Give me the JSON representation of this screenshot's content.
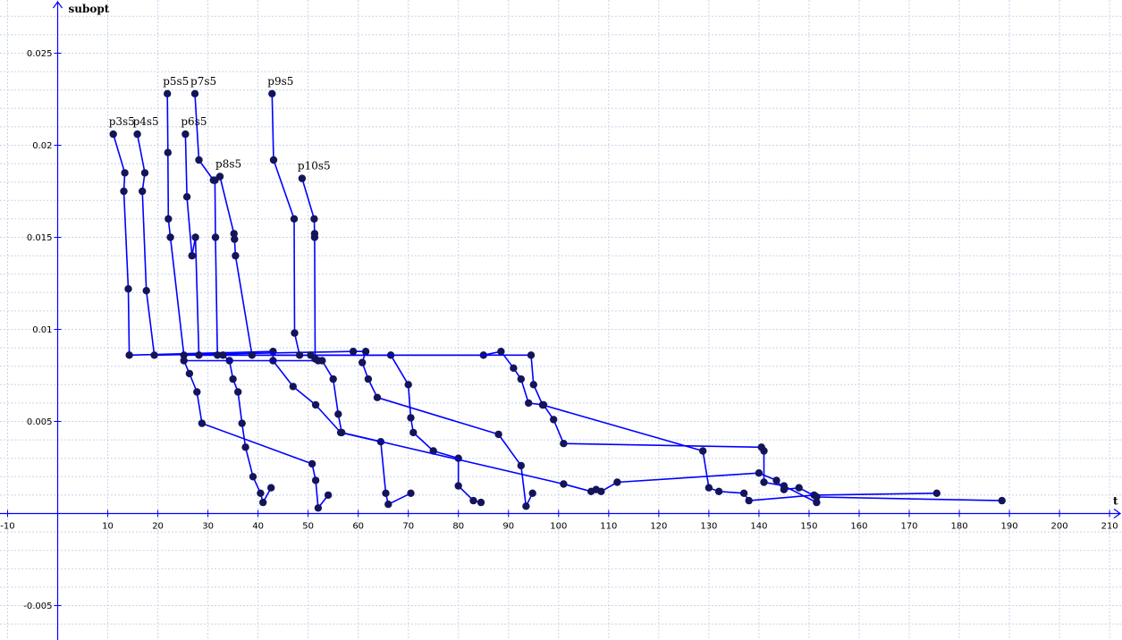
{
  "chart_data": {
    "type": "line",
    "title": "",
    "xlabel": "t",
    "ylabel": "subopt",
    "xlim": [
      -10,
      212
    ],
    "ylim": [
      -0.0068,
      0.0277
    ],
    "grid": true,
    "x_ticks": [
      -10,
      10,
      20,
      30,
      40,
      50,
      60,
      70,
      80,
      90,
      100,
      110,
      120,
      130,
      140,
      150,
      160,
      170,
      180,
      190,
      200,
      210
    ],
    "x_tick_labels": [
      "-10",
      "10",
      "20",
      "30",
      "40",
      "50",
      "60",
      "70",
      "80",
      "90",
      "100",
      "110",
      "120",
      "130",
      "140",
      "150",
      "160",
      "170",
      "180",
      "190",
      "200",
      "210"
    ],
    "y_ticks": [
      -0.005,
      0.005,
      0.01,
      0.015,
      0.02,
      0.025
    ],
    "y_tick_labels": [
      "-0.005",
      "0.005",
      "0.01",
      "0.015",
      "0.02",
      "0.025"
    ],
    "line_color": "#0000ff",
    "marker_color": "#14145a",
    "grid_color": "#c8d4e8",
    "axis_color": "#0000ff",
    "series": [
      {
        "name": "p3s5",
        "points": [
          [
            11.1,
            0.0206
          ],
          [
            13.4,
            0.0185
          ],
          [
            13.2,
            0.0175
          ],
          [
            14.1,
            0.0122
          ],
          [
            14.3,
            0.0086
          ],
          [
            43,
            0.0088
          ],
          [
            43,
            0.0083
          ],
          [
            47,
            0.0069
          ],
          [
            51.5,
            0.0059
          ],
          [
            56.5,
            0.0044
          ],
          [
            64.5,
            0.0039
          ],
          [
            65.5,
            0.0011
          ],
          [
            66,
            0.0005
          ],
          [
            70.5,
            0.0011
          ]
        ]
      },
      {
        "name": "p4s5",
        "points": [
          [
            15.9,
            0.0206
          ],
          [
            17.4,
            0.0185
          ],
          [
            16.9,
            0.0175
          ],
          [
            17.7,
            0.0121
          ],
          [
            19.3,
            0.0086
          ],
          [
            59,
            0.0088
          ],
          [
            61.5,
            0.0088
          ],
          [
            60.8,
            0.0082
          ],
          [
            62,
            0.0073
          ],
          [
            63.8,
            0.0063
          ],
          [
            88,
            0.0043
          ],
          [
            92.5,
            0.0026
          ],
          [
            93.5,
            0.0004
          ],
          [
            94.8,
            0.0011
          ]
        ]
      },
      {
        "name": "p5s5",
        "points": [
          [
            21.9,
            0.0228
          ],
          [
            22,
            0.0196
          ],
          [
            22.1,
            0.016
          ],
          [
            22.5,
            0.015
          ],
          [
            25.2,
            0.0086
          ],
          [
            85,
            0.0086
          ],
          [
            88.5,
            0.0088
          ],
          [
            91,
            0.0079
          ],
          [
            92.5,
            0.0073
          ],
          [
            94,
            0.006
          ],
          [
            97,
            0.0059
          ],
          [
            99,
            0.0051
          ],
          [
            101,
            0.0038
          ],
          [
            140.5,
            0.0036
          ],
          [
            141,
            0.0034
          ],
          [
            141,
            0.0017
          ],
          [
            145,
            0.0015
          ],
          [
            151.5,
            0.0006
          ]
        ]
      },
      {
        "name": "p6s5",
        "points": [
          [
            25.5,
            0.0206
          ],
          [
            25.8,
            0.0172
          ],
          [
            26.8,
            0.014
          ],
          [
            27.5,
            0.015
          ],
          [
            28.2,
            0.0086
          ],
          [
            66.5,
            0.0086
          ],
          [
            70,
            0.007
          ],
          [
            70.5,
            0.0052
          ],
          [
            71,
            0.0044
          ],
          [
            75,
            0.0034
          ],
          [
            80,
            0.003
          ],
          [
            80,
            0.0015
          ],
          [
            83,
            0.0007
          ],
          [
            84.5,
            0.0006
          ]
        ]
      },
      {
        "name": "p7s5",
        "points": [
          [
            27.4,
            0.0228
          ],
          [
            28.2,
            0.0192
          ],
          [
            31.1,
            0.0181
          ],
          [
            32.4,
            0.0183
          ],
          [
            35.2,
            0.0152
          ],
          [
            35.3,
            0.0149
          ],
          [
            35.5,
            0.014
          ],
          [
            38.8,
            0.0086
          ],
          [
            94.5,
            0.0086
          ],
          [
            95,
            0.007
          ],
          [
            96.8,
            0.0059
          ],
          [
            128.8,
            0.0034
          ],
          [
            130,
            0.0014
          ],
          [
            132,
            0.0012
          ],
          [
            137,
            0.0011
          ],
          [
            138,
            0.0007
          ],
          [
            151,
            0.001
          ],
          [
            175.5,
            0.0011
          ]
        ]
      },
      {
        "name": "p8s5",
        "points": [
          [
            31.4,
            0.0181
          ],
          [
            31.5,
            0.015
          ],
          [
            31.9,
            0.0086
          ],
          [
            33,
            0.0086
          ],
          [
            34.3,
            0.0083
          ],
          [
            35,
            0.0073
          ],
          [
            36,
            0.0066
          ],
          [
            36.8,
            0.0049
          ],
          [
            37.5,
            0.0036
          ],
          [
            39,
            0.002
          ],
          [
            40.5,
            0.0011
          ],
          [
            41,
            0.0006
          ],
          [
            42.6,
            0.0014
          ]
        ]
      },
      {
        "name": "p9s5",
        "points": [
          [
            42.8,
            0.0228
          ],
          [
            43.1,
            0.0192
          ],
          [
            47.2,
            0.016
          ],
          [
            47.3,
            0.0098
          ],
          [
            48.3,
            0.0086
          ],
          [
            50.5,
            0.0086
          ],
          [
            52.8,
            0.0083
          ],
          [
            55,
            0.0073
          ],
          [
            56,
            0.0054
          ],
          [
            56.7,
            0.0044
          ],
          [
            101,
            0.0016
          ],
          [
            106.5,
            0.0012
          ],
          [
            107.5,
            0.0013
          ],
          [
            108.5,
            0.0012
          ],
          [
            111.7,
            0.0017
          ],
          [
            140,
            0.0022
          ],
          [
            143.5,
            0.0018
          ],
          [
            145,
            0.0013
          ],
          [
            148,
            0.0014
          ],
          [
            151.5,
            0.0009
          ],
          [
            188.5,
            0.0007
          ]
        ]
      },
      {
        "name": "p10s5",
        "points": [
          [
            48.8,
            0.0182
          ],
          [
            51.2,
            0.016
          ],
          [
            51.3,
            0.0152
          ],
          [
            51.3,
            0.015
          ],
          [
            51.4,
            0.0084
          ],
          [
            52,
            0.0083
          ],
          [
            25.2,
            0.0083
          ],
          [
            26.3,
            0.0076
          ],
          [
            27.8,
            0.0066
          ],
          [
            28.8,
            0.0049
          ],
          [
            50.8,
            0.0027
          ],
          [
            51.5,
            0.0018
          ],
          [
            52,
            0.0003
          ],
          [
            54,
            0.001
          ]
        ]
      }
    ],
    "annotations": [
      {
        "text": "p3s5",
        "x": 11.1,
        "y": 0.0206
      },
      {
        "text": "p4s5",
        "x": 15.9,
        "y": 0.0206
      },
      {
        "text": "p5s5",
        "x": 21.9,
        "y": 0.0228
      },
      {
        "text": "p6s5",
        "x": 25.5,
        "y": 0.0206
      },
      {
        "text": "p7s5",
        "x": 27.4,
        "y": 0.0228
      },
      {
        "text": "p8s5",
        "x": 32.4,
        "y": 0.0183
      },
      {
        "text": "p9s5",
        "x": 42.8,
        "y": 0.0228
      },
      {
        "text": "p10s5",
        "x": 48.8,
        "y": 0.0182
      }
    ]
  }
}
